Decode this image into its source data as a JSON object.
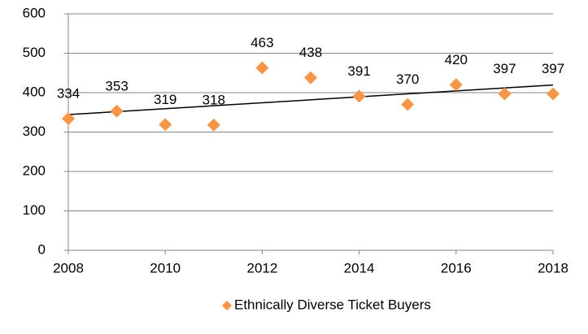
{
  "chart_data": {
    "type": "scatter",
    "x": [
      2008,
      2009,
      2010,
      2011,
      2012,
      2013,
      2014,
      2015,
      2016,
      2017,
      2018
    ],
    "series": [
      {
        "name": "Ethnically Diverse Ticket Buyers",
        "color": "#f79646",
        "values": [
          334,
          353,
          319,
          318,
          463,
          438,
          391,
          370,
          420,
          397,
          397
        ]
      }
    ],
    "xlim": [
      2008,
      2018
    ],
    "xticks": [
      2008,
      2010,
      2012,
      2014,
      2016,
      2018
    ],
    "ylim": [
      0,
      600
    ],
    "yticks": [
      0,
      100,
      200,
      300,
      400,
      500,
      600
    ],
    "grid": true,
    "trendline": true,
    "data_labels": true,
    "legend": "bottom"
  }
}
